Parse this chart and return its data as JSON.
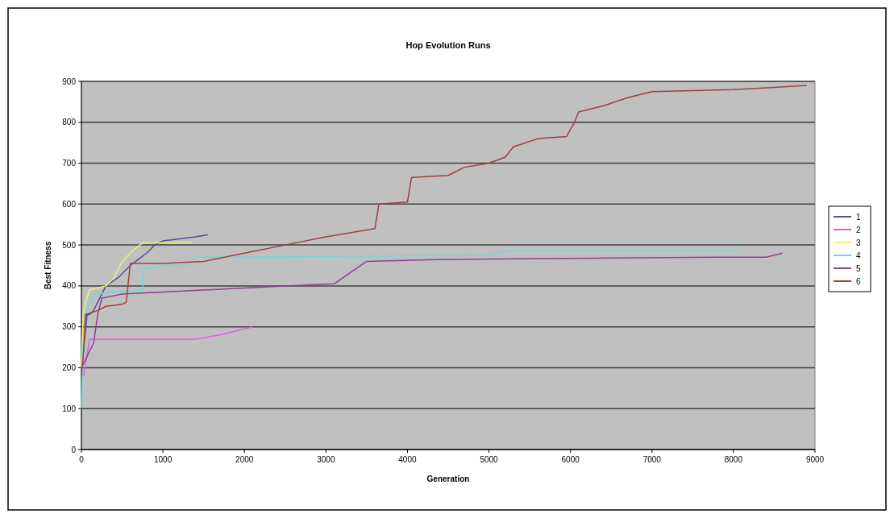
{
  "chart_data": {
    "type": "line",
    "title": "Hop Evolution Runs",
    "xlabel": "Generation",
    "ylabel": "Best Fitness",
    "xlim": [
      0,
      9000
    ],
    "xticks": [
      0,
      1000,
      2000,
      3000,
      4000,
      5000,
      6000,
      7000,
      8000,
      9000
    ],
    "ylim": [
      0,
      900
    ],
    "yticks": [
      0,
      100,
      200,
      300,
      400,
      500,
      600,
      700,
      800,
      900
    ],
    "grid": "y",
    "legend": "right",
    "series": [
      {
        "name": "1",
        "color": "#5050a0",
        "x": [
          0,
          70,
          100,
          150,
          250,
          300,
          450,
          600,
          700,
          800,
          900,
          1000,
          1400,
          1550
        ],
        "values": [
          190,
          330,
          330,
          340,
          380,
          400,
          420,
          450,
          465,
          480,
          500,
          510,
          520,
          525
        ]
      },
      {
        "name": "2",
        "color": "#e060e0",
        "x": [
          30,
          60,
          100,
          1400,
          1700,
          2100
        ],
        "values": [
          180,
          220,
          270,
          270,
          280,
          300
        ]
      },
      {
        "name": "3",
        "color": "#f0f080",
        "x": [
          0,
          20,
          50,
          100,
          300,
          400,
          500,
          650,
          750,
          1350
        ],
        "values": [
          200,
          330,
          360,
          390,
          400,
          420,
          460,
          490,
          505,
          505
        ]
      },
      {
        "name": "4",
        "color": "#70d8d8",
        "x": [
          0,
          20,
          50,
          150,
          750,
          760,
          1000,
          1300,
          1400,
          5000,
          5200,
          8100
        ],
        "values": [
          100,
          250,
          330,
          380,
          390,
          440,
          450,
          450,
          470,
          475,
          485,
          485
        ]
      },
      {
        "name": "5",
        "color": "#904090",
        "x": [
          0,
          100,
          150,
          200,
          250,
          500,
          1000,
          2500,
          3100,
          3500,
          4500,
          7800,
          8400,
          8600
        ],
        "values": [
          200,
          240,
          260,
          330,
          370,
          380,
          385,
          400,
          405,
          460,
          465,
          470,
          470,
          480
        ]
      },
      {
        "name": "6",
        "color": "#a04040",
        "x": [
          0,
          30,
          50,
          200,
          300,
          500,
          550,
          600,
          1000,
          1500,
          2000,
          2500,
          3000,
          3600,
          3650,
          4000,
          4050,
          4500,
          4700,
          5000,
          5200,
          5300,
          5600,
          5950,
          6050,
          6100,
          6400,
          6700,
          7000,
          8000,
          8500,
          8900
        ],
        "values": [
          180,
          250,
          330,
          340,
          350,
          355,
          360,
          455,
          455,
          460,
          480,
          500,
          520,
          540,
          600,
          605,
          665,
          670,
          690,
          700,
          715,
          740,
          760,
          765,
          800,
          825,
          840,
          860,
          875,
          880,
          885,
          890
        ]
      }
    ]
  }
}
